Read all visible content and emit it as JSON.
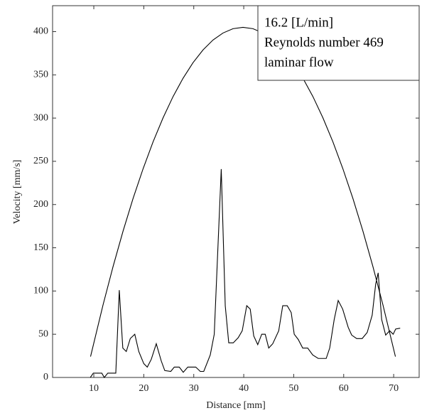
{
  "chart_data": {
    "type": "line",
    "xlabel": "Distance [mm]",
    "ylabel": "Velocity [mm/s]",
    "annotations": [
      "16.2 [L/min]",
      "Reynolds number 469",
      "laminar flow"
    ],
    "xlim": [
      1.75,
      75.1
    ],
    "ylim": [
      0,
      430
    ],
    "xticks": [
      10,
      20,
      30,
      40,
      50,
      60,
      70
    ],
    "yticks": [
      0,
      50,
      100,
      150,
      200,
      250,
      300,
      350,
      400
    ],
    "grid": false,
    "series": [
      {
        "color": "#000000",
        "x": [
          9.35,
          11.85,
          13.85,
          15.85,
          17.85,
          19.85,
          21.85,
          23.85,
          25.85,
          27.85,
          29.85,
          31.85,
          33.85,
          35.85,
          37.85,
          39.85,
          41.85,
          43.85,
          45.85,
          47.85,
          49.85,
          51.85,
          53.85,
          55.85,
          57.85,
          59.85,
          61.85,
          63.85,
          65.85,
          67.85,
          70.35
        ],
        "values": [
          24.2,
          84,
          128.2,
          169.2,
          206.9,
          241.2,
          272.4,
          300.2,
          324.8,
          346,
          364.1,
          378.8,
          390.3,
          398.4,
          403.4,
          405,
          403.4,
          398.4,
          390.3,
          378.8,
          364.1,
          346,
          324.8,
          300.2,
          272.4,
          241.2,
          206.9,
          169.2,
          128.2,
          84,
          24.2
        ]
      },
      {
        "color": "#000000",
        "x": [
          9.3,
          9.9,
          11.6,
          12.1,
          12.8,
          14.4,
          15.1,
          15.8,
          16.5,
          17.3,
          18.2,
          19.0,
          20.0,
          20.7,
          21.5,
          22.5,
          23.5,
          24.2,
          25.4,
          26.1,
          27.1,
          27.9,
          28.8,
          30.4,
          31.3,
          32.0,
          33.3,
          34.1,
          35.5,
          36.3,
          37.0,
          37.9,
          38.9,
          39.7,
          40.6,
          41.3,
          42.0,
          42.8,
          43.6,
          44.3,
          45.0,
          45.8,
          47.0,
          47.8,
          48.7,
          49.5,
          50.1,
          50.9,
          51.8,
          52.8,
          53.8,
          54.9,
          56.5,
          57.2,
          58.1,
          58.9,
          59.8,
          60.9,
          61.6,
          62.6,
          63.7,
          64.7,
          65.7,
          66.4,
          66.9,
          67.6,
          68.4,
          69.2,
          69.9,
          70.4,
          71.3
        ],
        "values": [
          0,
          5,
          5,
          0,
          5,
          5,
          101,
          34,
          30,
          45,
          50,
          30,
          16,
          12,
          21,
          39,
          19,
          8,
          7,
          12,
          12,
          6,
          12,
          12,
          7,
          7,
          26,
          50,
          241,
          83,
          40,
          40,
          46,
          54,
          83,
          79,
          48,
          38,
          50,
          50,
          34,
          39,
          54,
          83,
          83,
          75,
          50,
          44,
          34,
          34,
          26,
          22,
          22,
          34,
          67,
          89,
          79,
          58,
          49,
          45,
          45,
          52,
          72,
          108,
          121,
          67,
          49,
          54,
          50,
          56,
          57
        ]
      }
    ]
  }
}
